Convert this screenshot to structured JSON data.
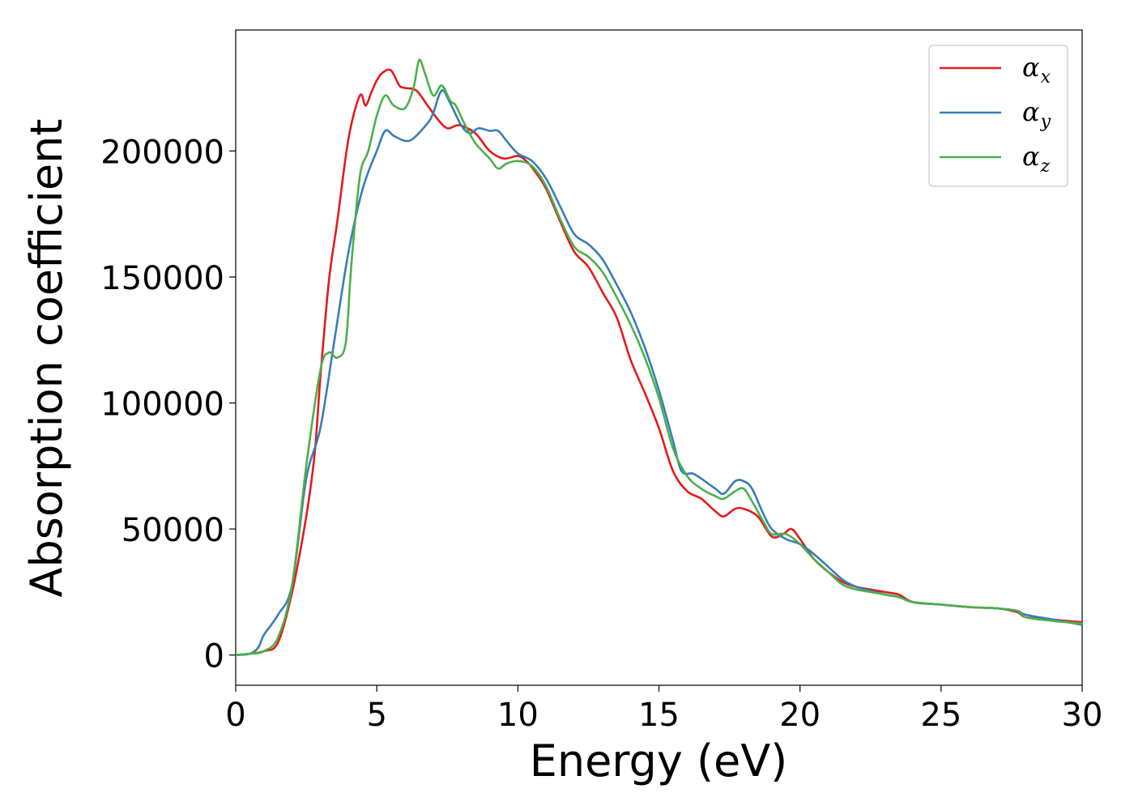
{
  "chart_data": {
    "type": "line",
    "xlabel": "Energy (eV)",
    "ylabel": "Absorption coefficient",
    "xlim": [
      0,
      30
    ],
    "ylim": [
      -12000,
      248000
    ],
    "xticks": [
      0,
      5,
      10,
      15,
      20,
      25,
      30
    ],
    "xtick_labels": [
      "0",
      "5",
      "10",
      "15",
      "20",
      "25",
      "30"
    ],
    "yticks": [
      0,
      50000,
      100000,
      150000,
      200000
    ],
    "ytick_labels": [
      "0",
      "50000",
      "100000",
      "150000",
      "200000"
    ],
    "grid": false,
    "legend_position": "top-right",
    "series": [
      {
        "name": "α",
        "subscript": "x",
        "color": "#e41a1c",
        "x": [
          0,
          0.5,
          1.0,
          1.5,
          2.0,
          2.5,
          2.8,
          3.0,
          3.3,
          3.6,
          4.0,
          4.4,
          4.6,
          4.8,
          5.0,
          5.2,
          5.5,
          5.8,
          6.0,
          6.4,
          6.8,
          7.2,
          7.5,
          7.8,
          8.0,
          8.5,
          9.0,
          9.5,
          10.0,
          10.3,
          10.6,
          11.0,
          11.5,
          12.0,
          12.5,
          13.0,
          13.5,
          14.0,
          14.5,
          15.0,
          15.5,
          16.0,
          16.5,
          17.0,
          17.3,
          17.7,
          18.0,
          18.5,
          19.0,
          19.4,
          19.7,
          20.0,
          20.5,
          21.0,
          21.5,
          22.0,
          22.5,
          23.0,
          23.5,
          24.0,
          25.0,
          26.0,
          27.0,
          27.7,
          28.0,
          29.0,
          30.0
        ],
        "values": [
          0,
          500,
          1500,
          5000,
          25000,
          55000,
          80000,
          110000,
          148000,
          172000,
          205000,
          222000,
          218000,
          223000,
          228000,
          231000,
          232000,
          226000,
          225000,
          224000,
          218000,
          212000,
          209000,
          210000,
          210000,
          207000,
          200000,
          197000,
          198000,
          196000,
          192000,
          185000,
          172000,
          160000,
          154000,
          144000,
          134000,
          117000,
          104000,
          90000,
          73000,
          65000,
          62000,
          57000,
          55000,
          58000,
          58000,
          55000,
          47000,
          48000,
          50000,
          46000,
          38000,
          33000,
          29000,
          27000,
          26000,
          25000,
          24000,
          21000,
          20000,
          19000,
          18500,
          17000,
          15000,
          14000,
          13000
        ]
      },
      {
        "name": "α",
        "subscript": "y",
        "color": "#377eb8",
        "x": [
          0,
          0.5,
          0.8,
          1.0,
          1.5,
          2.0,
          2.5,
          3.0,
          3.5,
          4.0,
          4.5,
          5.0,
          5.3,
          5.6,
          6.0,
          6.3,
          6.8,
          7.0,
          7.3,
          7.6,
          8.0,
          8.3,
          8.6,
          9.0,
          9.3,
          9.6,
          10.0,
          10.5,
          11.0,
          11.5,
          12.0,
          12.5,
          13.0,
          13.5,
          14.0,
          14.5,
          15.0,
          15.5,
          15.8,
          16.2,
          16.5,
          17.0,
          17.3,
          17.7,
          18.0,
          18.3,
          18.7,
          19.0,
          19.5,
          20.0,
          20.5,
          21.0,
          21.5,
          22.0,
          22.5,
          23.0,
          23.5,
          24.0,
          25.0,
          26.0,
          27.0,
          27.7,
          28.0,
          29.0,
          30.0
        ],
        "values": [
          0,
          500,
          3000,
          8000,
          16000,
          28000,
          70000,
          90000,
          125000,
          160000,
          185000,
          200000,
          208000,
          206000,
          204000,
          205000,
          211000,
          215000,
          224000,
          219000,
          210000,
          207000,
          209000,
          208000,
          208000,
          204000,
          199000,
          196000,
          189000,
          178000,
          167000,
          163000,
          157000,
          147000,
          136000,
          122000,
          105000,
          85000,
          73000,
          72000,
          70000,
          66000,
          64000,
          69000,
          69000,
          66000,
          56000,
          50000,
          46000,
          44000,
          40000,
          35000,
          30000,
          27000,
          25500,
          24000,
          23000,
          21000,
          20000,
          19000,
          18500,
          17500,
          16000,
          14000,
          12000
        ]
      },
      {
        "name": "α",
        "subscript": "z",
        "color": "#4daf4a",
        "x": [
          0,
          0.5,
          1.0,
          1.5,
          2.0,
          2.5,
          3.0,
          3.3,
          3.6,
          3.9,
          4.1,
          4.4,
          4.7,
          5.0,
          5.3,
          5.6,
          6.0,
          6.3,
          6.5,
          6.7,
          7.0,
          7.3,
          7.6,
          7.8,
          8.1,
          8.5,
          9.0,
          9.3,
          9.6,
          10.0,
          10.5,
          11.0,
          11.5,
          12.0,
          12.5,
          13.0,
          13.5,
          14.0,
          14.5,
          15.0,
          15.5,
          16.0,
          16.5,
          17.0,
          17.3,
          17.7,
          18.0,
          18.3,
          18.7,
          19.0,
          19.5,
          20.0,
          20.5,
          21.0,
          21.5,
          22.0,
          22.5,
          23.0,
          23.5,
          24.0,
          25.0,
          26.0,
          27.0,
          27.7,
          28.0,
          29.0,
          30.0
        ],
        "values": [
          0,
          500,
          1500,
          7000,
          28000,
          75000,
          113000,
          120000,
          118000,
          124000,
          155000,
          190000,
          200000,
          214000,
          222000,
          218000,
          217000,
          225000,
          236000,
          231000,
          222000,
          226000,
          220000,
          218000,
          211000,
          203000,
          197000,
          193000,
          195000,
          196000,
          194000,
          186000,
          173000,
          162000,
          158000,
          152000,
          142000,
          131000,
          118000,
          102000,
          82000,
          71000,
          66000,
          63000,
          62000,
          65000,
          66000,
          61000,
          53000,
          48000,
          48000,
          44000,
          38000,
          33000,
          28000,
          26000,
          25000,
          24000,
          23000,
          21000,
          20000,
          19000,
          18500,
          17500,
          15000,
          13500,
          12500
        ]
      }
    ]
  }
}
